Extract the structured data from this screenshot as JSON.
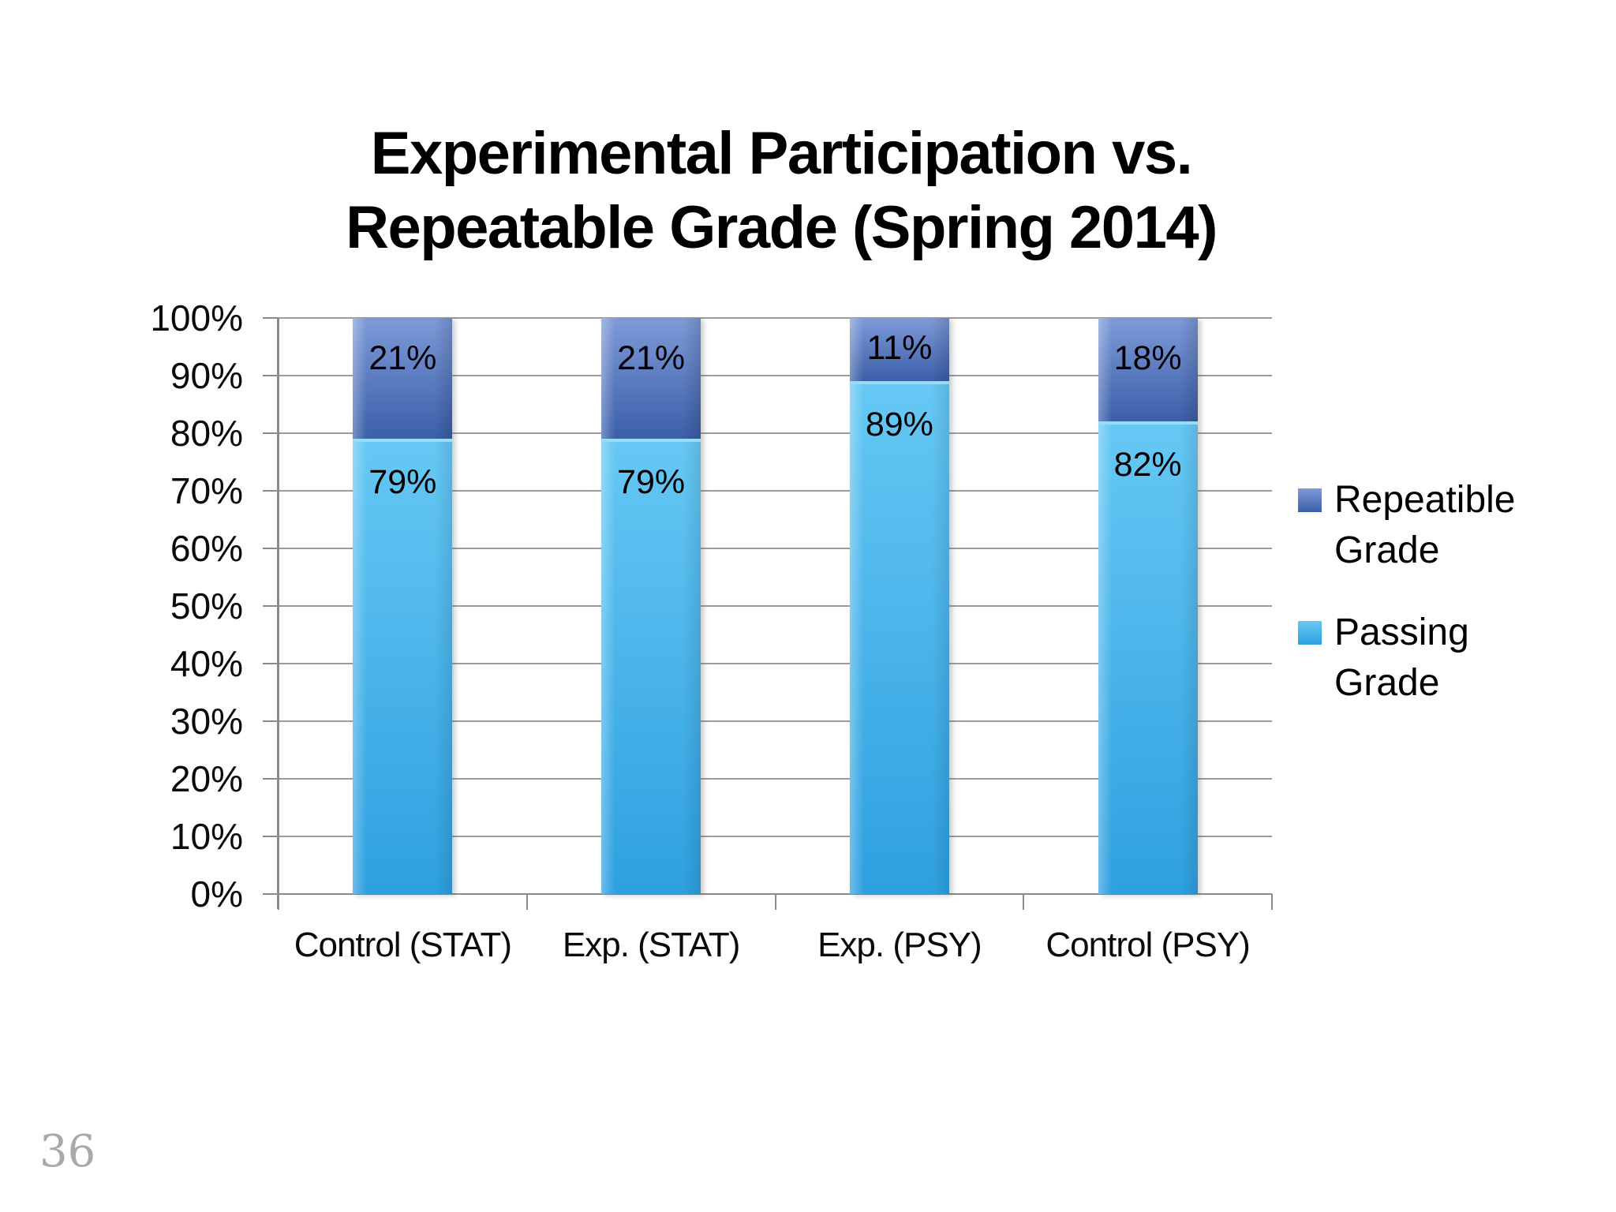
{
  "slide": {
    "page_number": "36",
    "background": "#ffffff"
  },
  "title": {
    "line1": "Experimental Participation vs.",
    "line2": "Repeatable Grade (Spring 2014)"
  },
  "legend": {
    "position": "right",
    "items": [
      {
        "key": "repeatable",
        "lines": [
          "Repeatible",
          "Grade"
        ]
      },
      {
        "key": "passing",
        "lines": [
          "Passing",
          "Grade"
        ]
      }
    ]
  },
  "colors": {
    "repeatable_top": "#7E9AD8",
    "repeatable_bottom": "#3B5FA9",
    "passing_top": "#66C8F4",
    "passing_bottom": "#2EA0E0",
    "segment_divider": "#9ADCF8",
    "gridline": "#9C9C9C",
    "axis": "#8A8A8A",
    "text": "#000000",
    "page_number_gray": "#A9A9A9"
  },
  "chart_data": {
    "type": "bar",
    "stacked": true,
    "title": "Experimental Participation vs. Repeatable Grade (Spring 2014)",
    "categories": [
      "Control (STAT)",
      "Exp. (STAT)",
      "Exp. (PSY)",
      "Control (PSY)"
    ],
    "series": [
      {
        "name": "Passing Grade",
        "values": [
          79,
          79,
          89,
          82
        ],
        "labels": [
          "79%",
          "79%",
          "89%",
          "82%"
        ]
      },
      {
        "name": "Repeatible Grade",
        "values": [
          21,
          21,
          11,
          18
        ],
        "labels": [
          "21%",
          "21%",
          "11%",
          "18%"
        ]
      }
    ],
    "xlabel": "",
    "ylabel": "",
    "ylim": [
      0,
      100
    ],
    "y_tick_step": 10,
    "y_tick_labels": [
      "0%",
      "10%",
      "20%",
      "30%",
      "40%",
      "50%",
      "60%",
      "70%",
      "80%",
      "90%",
      "100%"
    ],
    "grid": true,
    "legend_position": "right",
    "data_label_position": "inside-top"
  }
}
